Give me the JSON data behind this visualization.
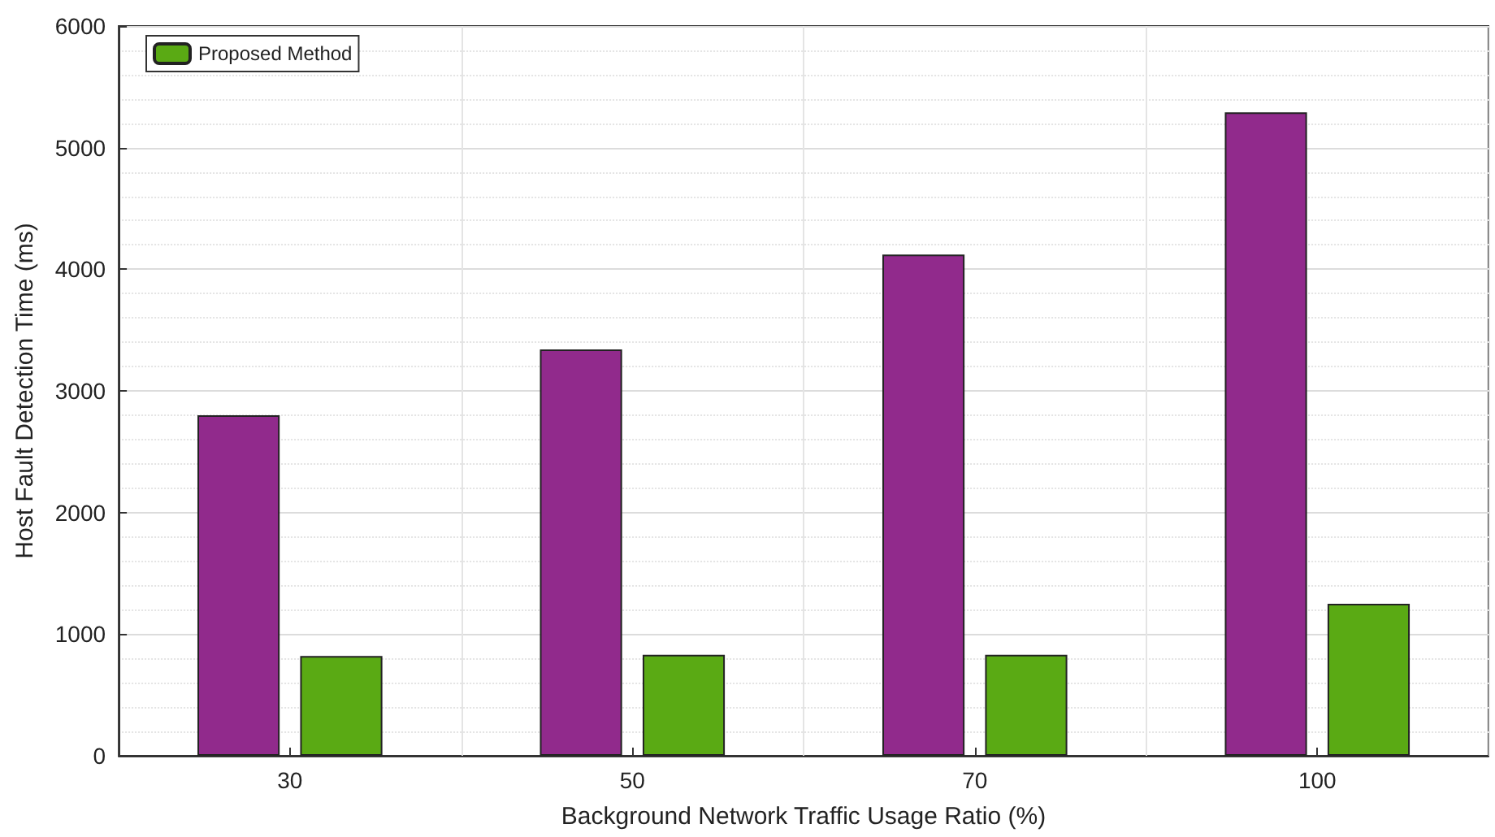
{
  "chart_data": {
    "type": "bar",
    "xlabel": "Background Network Traffic Usage Ratio (%)",
    "ylabel": "Host Fault Detection Time (ms)",
    "categories": [
      "30",
      "50",
      "70",
      "100"
    ],
    "series": [
      {
        "color": "#912a8c",
        "values": [
          2800,
          3340,
          4120,
          5290
        ]
      },
      {
        "name": "Proposed Method",
        "color": "#5aaa14",
        "values": [
          820,
          830,
          830,
          1250
        ]
      }
    ],
    "ylim": [
      0,
      6000
    ],
    "yticks": [
      0,
      1000,
      2000,
      3000,
      4000,
      5000,
      6000
    ],
    "grid": true,
    "legend": "top left"
  }
}
